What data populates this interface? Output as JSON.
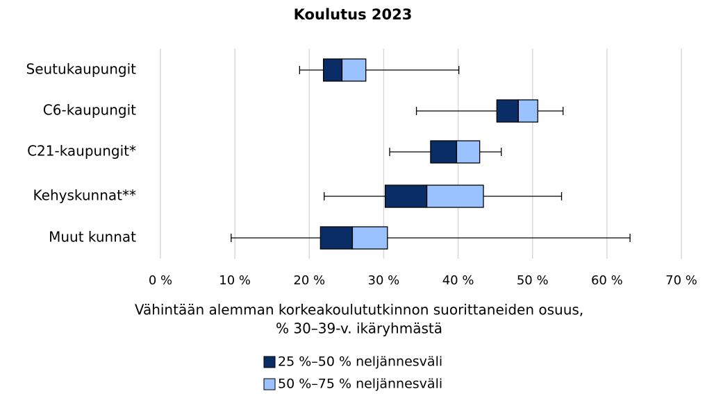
{
  "chart_data": {
    "type": "boxplot",
    "title": "Koulutus 2023",
    "categories": [
      "Seutukaupungit",
      "C6-kaupungit",
      "C21-kaupungit*",
      "Kehyskunnat**",
      "Muut kunnat"
    ],
    "min": [
      18.7,
      34.4,
      30.8,
      22.0,
      9.5
    ],
    "q1": [
      21.9,
      45.2,
      36.3,
      30.2,
      21.5
    ],
    "median": [
      24.4,
      48.1,
      39.8,
      35.8,
      25.8
    ],
    "q3": [
      27.6,
      50.7,
      42.9,
      43.4,
      30.5
    ],
    "max": [
      40.1,
      54.1,
      45.8,
      53.9,
      63.1
    ],
    "series": [
      {
        "name": "25 %–50 % neljännesväli",
        "color": "#0b2d66"
      },
      {
        "name": "50 %–75 % neljännesväli",
        "color": "#99c2ff"
      }
    ],
    "xlabel": [
      "Vähintään alemman korkeakoulututkinnon suorittaneiden osuus,",
      "% 30–39-v. ikäryhmästä"
    ],
    "xlim": [
      0,
      70
    ],
    "xticks": [
      {
        "value": 0,
        "label": "0 %"
      },
      {
        "value": 10,
        "label": "10 %"
      },
      {
        "value": 20,
        "label": "20 %"
      },
      {
        "value": 30,
        "label": "30 %"
      },
      {
        "value": 40,
        "label": "40 %"
      },
      {
        "value": 50,
        "label": "50 %"
      },
      {
        "value": 60,
        "label": "60 %"
      },
      {
        "value": 70,
        "label": "70 %"
      }
    ],
    "grid": true
  }
}
